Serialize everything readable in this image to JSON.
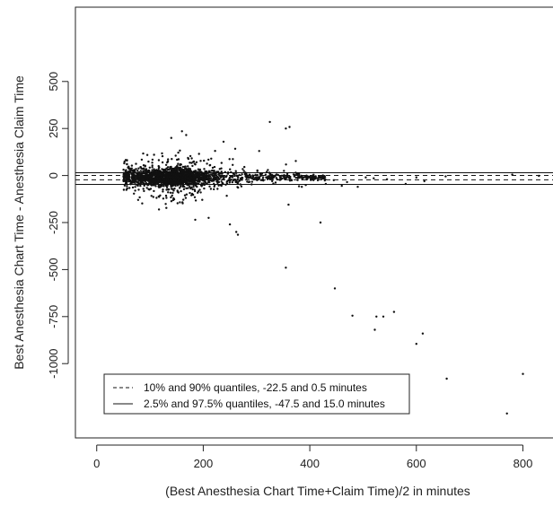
{
  "chart_data": {
    "type": "scatter",
    "xlabel": "(Best Anesthesia Chart Time+Claim Time)/2 in minutes",
    "ylabel": "Best Anesthesia Chart Time - Anesthesia Claim Time",
    "xlim": [
      -40,
      870
    ],
    "ylim": [
      -1395,
      895
    ],
    "x_ticks": [
      0,
      200,
      400,
      600,
      800
    ],
    "y_ticks": [
      500,
      250,
      0,
      -250,
      -500,
      -750,
      -1000
    ],
    "grid": false,
    "reference_lines": [
      {
        "y": 0.5,
        "style": "dashed"
      },
      {
        "y": -22.5,
        "style": "dashed"
      },
      {
        "y": 15.0,
        "style": "solid"
      },
      {
        "y": -47.5,
        "style": "solid"
      }
    ],
    "legend": {
      "position": "bottom-left",
      "entries": [
        {
          "label": "10% and 90% quantiles, -22.5 and 0.5 minutes",
          "style": "dashed"
        },
        {
          "label": "2.5% and 97.5% quantiles, -47.5 and 15.0 minutes",
          "style": "solid"
        }
      ]
    },
    "outliers": [
      [
        325,
        285
      ],
      [
        355,
        250
      ],
      [
        362,
        258
      ],
      [
        160,
        235
      ],
      [
        168,
        215
      ],
      [
        238,
        180
      ],
      [
        140,
        200
      ],
      [
        260,
        142
      ],
      [
        305,
        130
      ],
      [
        360,
        -155
      ],
      [
        420,
        -250
      ],
      [
        265,
        -315
      ],
      [
        262,
        -300
      ],
      [
        250,
        -260
      ],
      [
        185,
        -235
      ],
      [
        210,
        -225
      ],
      [
        355,
        -490
      ],
      [
        447,
        -600
      ],
      [
        480,
        -745
      ],
      [
        522,
        -820
      ],
      [
        525,
        -750
      ],
      [
        538,
        -750
      ],
      [
        558,
        -725
      ],
      [
        600,
        -895
      ],
      [
        612,
        -840
      ],
      [
        657,
        -1080
      ],
      [
        770,
        -1265
      ],
      [
        800,
        -1055
      ],
      [
        445,
        -25
      ],
      [
        470,
        -35
      ],
      [
        520,
        -15
      ],
      [
        545,
        -20
      ],
      [
        580,
        -45
      ],
      [
        600,
        -10
      ],
      [
        655,
        -5
      ],
      [
        780,
        5
      ],
      [
        830,
        -2
      ],
      [
        615,
        -30
      ],
      [
        505,
        -10
      ],
      [
        490,
        -60
      ],
      [
        460,
        -55
      ],
      [
        430,
        -45
      ],
      [
        385,
        -60
      ]
    ],
    "dense_cloud": {
      "x_range": [
        50,
        430
      ],
      "peak_x": 130,
      "y_center": -10
    }
  }
}
